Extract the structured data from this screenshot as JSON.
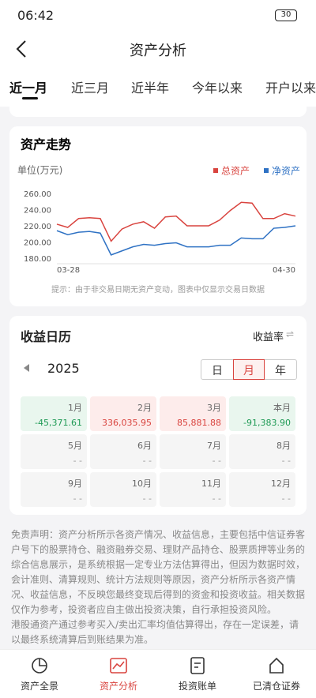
{
  "status_bar": {
    "time": "06:42",
    "battery": "30"
  },
  "header": {
    "title": "资产分析"
  },
  "tabs": [
    "近一月",
    "近三月",
    "近半年",
    "今年以来",
    "开户以来"
  ],
  "asset_trend": {
    "title": "资产走势",
    "unit": "单位(万元)",
    "note": "提示：由于非交易日期无资产变动，图表中仅显示交易日数据"
  },
  "chart_data": {
    "type": "line",
    "categories": [
      "03-28",
      null,
      null,
      null,
      null,
      null,
      null,
      null,
      null,
      null,
      null,
      null,
      null,
      null,
      null,
      null,
      null,
      null,
      null,
      null,
      null,
      null,
      "04-30"
    ],
    "series": [
      {
        "name": "总资产",
        "color": "#d9443f",
        "values": [
          223,
          219,
          230,
          231,
          230,
          202,
          217,
          223,
          226,
          218,
          232,
          233,
          221,
          221,
          221,
          228,
          240,
          250,
          249,
          230,
          230,
          236,
          233
        ]
      },
      {
        "name": "净资产",
        "color": "#2f72c4",
        "values": [
          215,
          210,
          213,
          214,
          212,
          185,
          190,
          195,
          198,
          197,
          199,
          200,
          195,
          195,
          195,
          197,
          197,
          206,
          205,
          205,
          218,
          219,
          221
        ]
      }
    ],
    "ylim": [
      180,
      260
    ],
    "yticks": [
      {
        "value": 260,
        "label": "260.00"
      },
      {
        "value": 240,
        "label": "240.00"
      },
      {
        "value": 220,
        "label": "220.00"
      },
      {
        "value": 200,
        "label": "200.00"
      },
      {
        "value": 180,
        "label": "180.00"
      }
    ],
    "grid": false,
    "legend": "top-right"
  },
  "calendar": {
    "title": "收益日历",
    "toggle": "收益率",
    "year": "2025",
    "modes": [
      "日",
      "月",
      "年"
    ],
    "cells": [
      {
        "month": "1月",
        "value": "-45,371.61"
      },
      {
        "month": "2月",
        "value": "336,035.95"
      },
      {
        "month": "3月",
        "value": "85,881.88"
      },
      {
        "month": "本月",
        "value": "-91,383.90"
      },
      {
        "month": "5月",
        "value": "- -"
      },
      {
        "month": "6月",
        "value": "- -"
      },
      {
        "month": "7月",
        "value": "- -"
      },
      {
        "month": "8月",
        "value": "- -"
      },
      {
        "month": "9月",
        "value": "- -"
      },
      {
        "month": "10月",
        "value": "- -"
      },
      {
        "month": "11月",
        "value": "- -"
      },
      {
        "month": "12月",
        "value": "- -"
      }
    ]
  },
  "disclaimer": [
    "免责声明：资产分析所示各资产情况、收益信息，主要包括中信证券客户号下的股票持仓、融资融券交易、理财产品持仓、股票质押等业务的综合信息展示，是系统根据一定专业方法估算得出，但因为数据时效，会计准则、清算规则、统计方法规则等原因，资产分析所示各资产情况、收益信息，不反映您最终变现后得到的资金和投资收益。相关数据仅作为参考，投资者应自主做出投资决策，自行承担投资风险。",
    "港股通资产通过参考买入/卖出汇率均值估算得出，存在一定误差，请以最终系统清算后到账结果为准。"
  ],
  "nav": [
    "资产全景",
    "资产分析",
    "投资账单",
    "已清仓证券"
  ]
}
